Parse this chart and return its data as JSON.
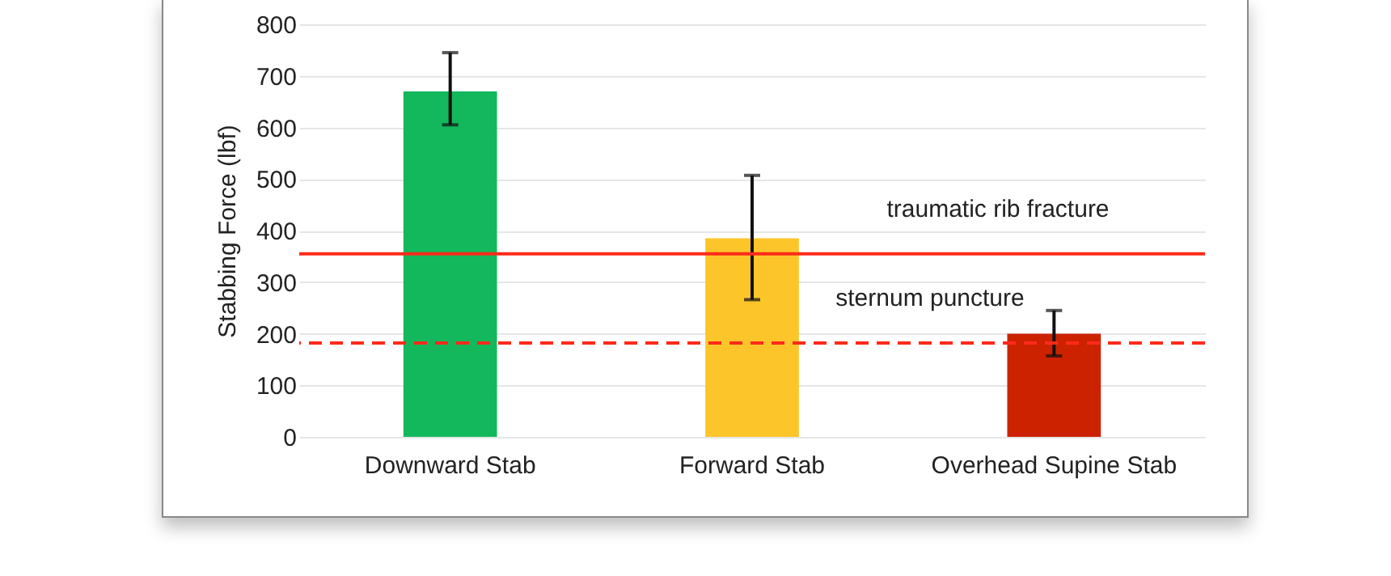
{
  "chart_data": {
    "type": "bar",
    "ylabel": "Stabbing Force (lbf)",
    "categories": [
      "Downward Stab",
      "Forward Stab",
      "Overhead Supine Stab"
    ],
    "values": [
      670,
      385,
      200
    ],
    "colors": [
      "#13b85c",
      "#fcc62a",
      "#cc2200"
    ],
    "errors": [
      [
        605,
        745
      ],
      [
        266,
        507
      ],
      [
        157,
        245
      ]
    ],
    "ylim": [
      0,
      800
    ],
    "yticks": [
      0,
      100,
      200,
      300,
      400,
      500,
      600,
      700,
      800
    ],
    "grid": "y",
    "ref_lines": [
      {
        "axis": "y",
        "value": 355,
        "label": "traumatic rib fracture",
        "color": "#ff2a1a",
        "line_style": "solid"
      },
      {
        "axis": "y",
        "value": 182,
        "label": "sternum puncture",
        "color": "#ff2a1a",
        "line_style": "dashed"
      }
    ]
  }
}
